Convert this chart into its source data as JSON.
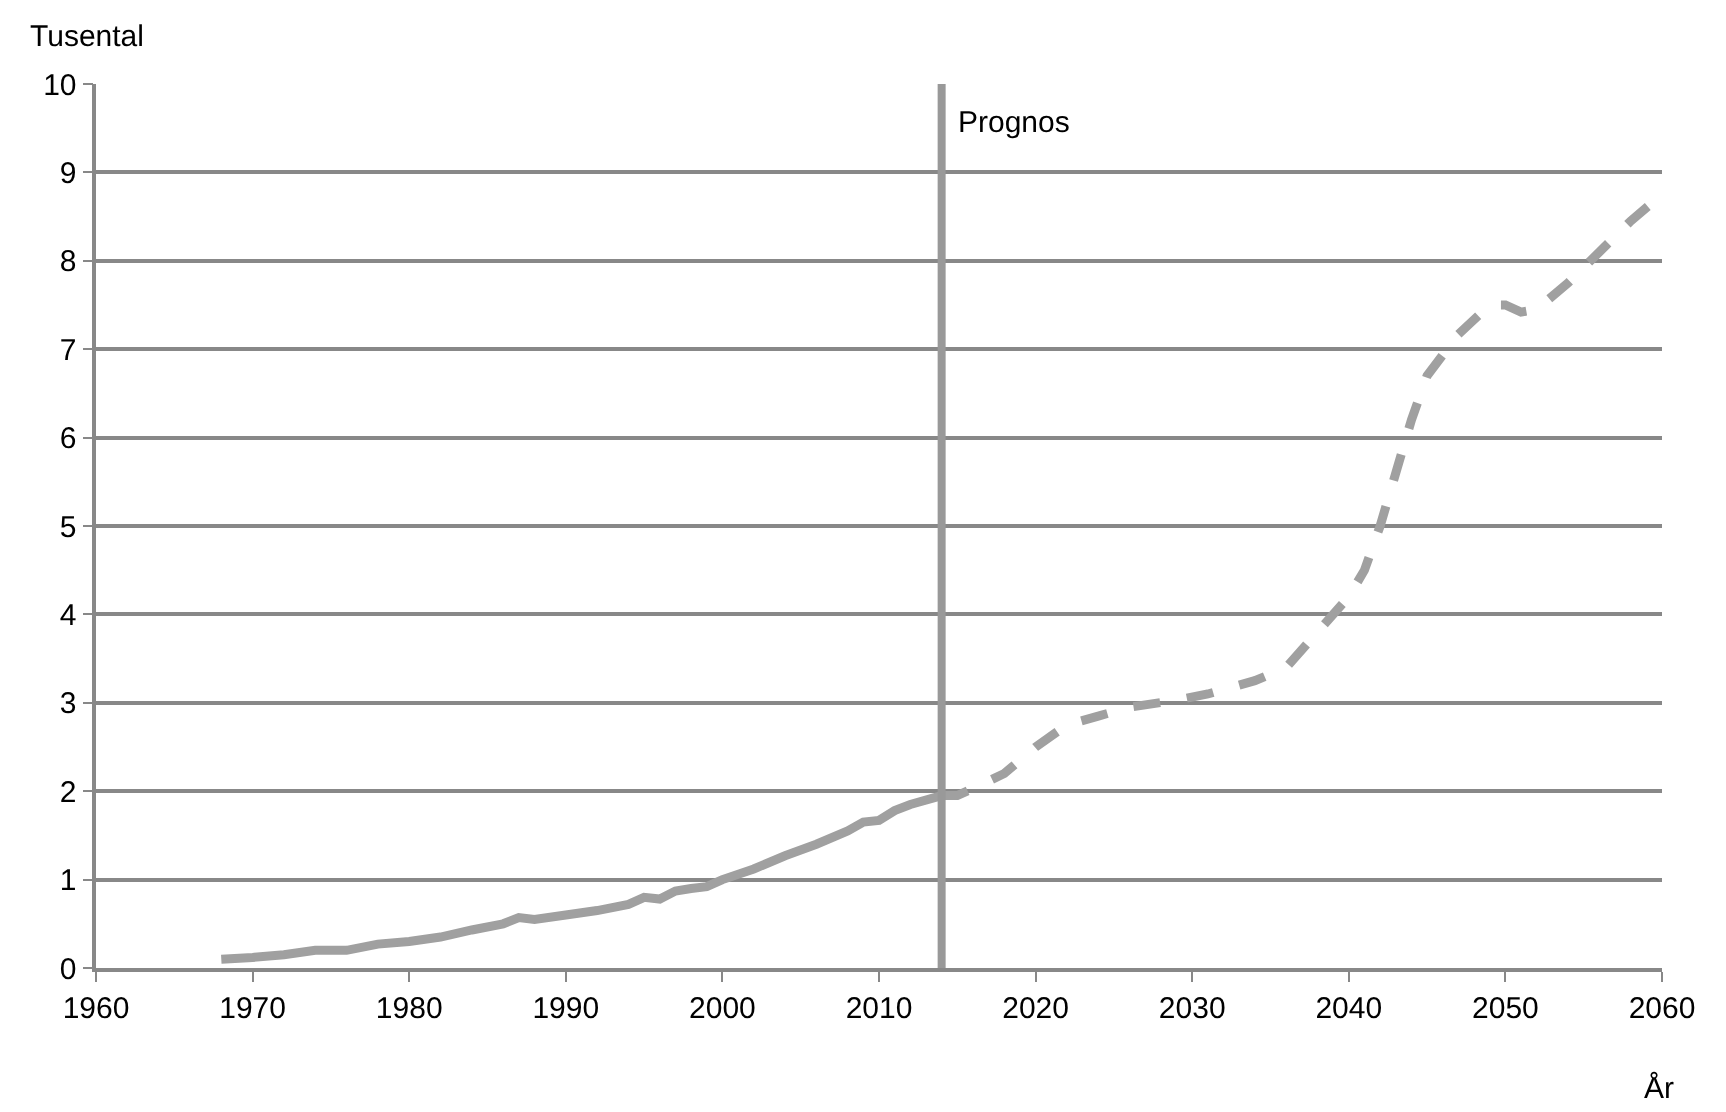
{
  "chart_data": {
    "type": "line",
    "xlabel": "År",
    "ylabel": "Tusental",
    "xlim": [
      1960,
      2060
    ],
    "xticks": [
      1960,
      1970,
      1980,
      1990,
      2000,
      2010,
      2020,
      2030,
      2040,
      2050,
      2060
    ],
    "ylim": [
      0,
      10
    ],
    "yticks": [
      0,
      1,
      2,
      3,
      4,
      5,
      6,
      7,
      8,
      9,
      10
    ],
    "grid": "y",
    "marker": "none",
    "ref_lines": [
      {
        "axis": "x",
        "value": 2014,
        "label": "Prognos",
        "color": "#999999",
        "line_style": "solid"
      }
    ],
    "series": [
      {
        "color": "#a0a0a0",
        "line_style": "solid",
        "x": [
          1968,
          1970,
          1972,
          1974,
          1976,
          1978,
          1980,
          1982,
          1984,
          1986,
          1987,
          1988,
          1990,
          1992,
          1994,
          1995,
          1996,
          1997,
          1998,
          1999,
          2000,
          2002,
          2004,
          2006,
          2008,
          2009,
          2010,
          2011,
          2012,
          2014
        ],
        "values": [
          0.1,
          0.12,
          0.15,
          0.2,
          0.2,
          0.27,
          0.3,
          0.35,
          0.43,
          0.5,
          0.57,
          0.55,
          0.6,
          0.65,
          0.72,
          0.8,
          0.78,
          0.87,
          0.9,
          0.92,
          1.0,
          1.12,
          1.27,
          1.4,
          1.55,
          1.65,
          1.67,
          1.78,
          1.85,
          1.95
        ]
      },
      {
        "color": "#a0a0a0",
        "line_style": "dashed",
        "x": [
          2014,
          2015,
          2016,
          2018,
          2020,
          2022,
          2024,
          2026,
          2029,
          2031,
          2034,
          2036,
          2038,
          2040,
          2041,
          2042,
          2043,
          2044,
          2045,
          2047,
          2049,
          2050,
          2051,
          2052,
          2054,
          2056,
          2058,
          2060
        ],
        "values": [
          1.95,
          1.95,
          2.03,
          2.2,
          2.5,
          2.75,
          2.85,
          2.95,
          3.03,
          3.1,
          3.25,
          3.4,
          3.8,
          4.2,
          4.5,
          5.0,
          5.6,
          6.2,
          6.7,
          7.17,
          7.5,
          7.5,
          7.42,
          7.45,
          7.75,
          8.1,
          8.45,
          8.75
        ]
      }
    ]
  }
}
